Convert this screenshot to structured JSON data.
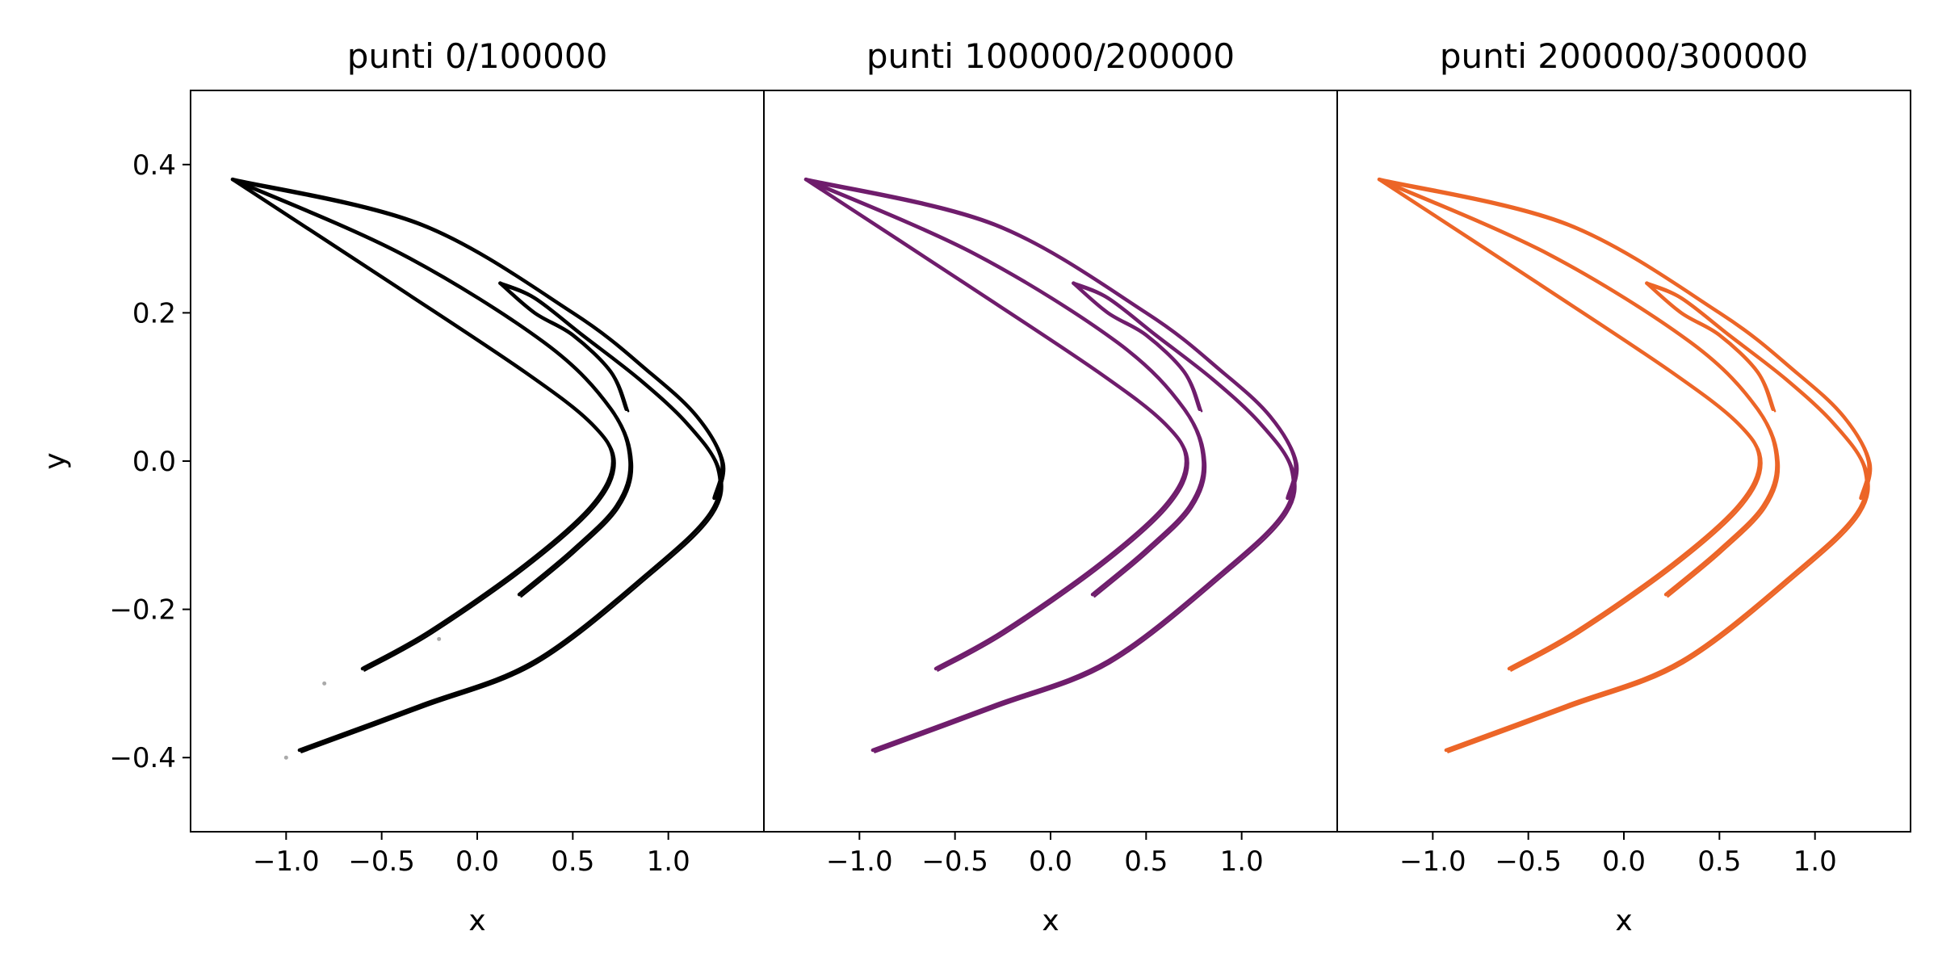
{
  "chart_data": [
    {
      "type": "scatter",
      "title": "punti 0/100000",
      "xlabel": "x",
      "ylabel": "y",
      "xlim": [
        -1.5,
        1.5
      ],
      "ylim": [
        -0.5,
        0.5
      ],
      "xticks": [
        -1.0,
        -0.5,
        0.0,
        0.5,
        1.0
      ],
      "xtick_labels": [
        "−1.0",
        "−0.5",
        "0.0",
        "0.5",
        "1.0"
      ],
      "yticks": [
        0.4,
        0.2,
        0.0,
        -0.2,
        -0.4
      ],
      "ytick_labels": [
        "0.4",
        "0.2",
        "0.0",
        "−0.2",
        "−0.4"
      ],
      "grid": false,
      "color": "#000000",
      "transient_points": [
        {
          "x": -1.0,
          "y": -0.4
        },
        {
          "x": -0.8,
          "y": -0.3
        },
        {
          "x": -0.2,
          "y": -0.24
        }
      ],
      "series": [
        {
          "points": [
            [
              -1.28,
              0.38
            ],
            [
              -0.45,
              0.24
            ],
            [
              0.25,
              0.12
            ],
            [
              0.6,
              0.05
            ],
            [
              0.71,
              0.0
            ],
            [
              0.6,
              -0.06
            ],
            [
              0.25,
              -0.14
            ],
            [
              -0.25,
              -0.23
            ],
            [
              -0.6,
              -0.28
            ]
          ]
        },
        {
          "points": [
            [
              -1.28,
              0.38
            ],
            [
              -0.4,
              0.28
            ],
            [
              0.35,
              0.16
            ],
            [
              0.7,
              0.07
            ],
            [
              0.8,
              0.0
            ],
            [
              0.73,
              -0.06
            ],
            [
              0.5,
              -0.12
            ],
            [
              0.22,
              -0.18
            ]
          ]
        },
        {
          "points": [
            [
              0.12,
              0.24
            ],
            [
              0.3,
              0.22
            ],
            [
              0.55,
              0.17
            ],
            [
              0.85,
              0.11
            ],
            [
              1.1,
              0.05
            ],
            [
              1.26,
              -0.01
            ],
            [
              1.22,
              -0.07
            ],
            [
              0.9,
              -0.15
            ],
            [
              0.3,
              -0.27
            ],
            [
              -0.3,
              -0.33
            ],
            [
              -0.93,
              -0.39
            ]
          ]
        },
        {
          "points": [
            [
              -1.28,
              0.38
            ],
            [
              -0.3,
              0.32
            ],
            [
              0.5,
              0.2
            ],
            [
              0.9,
              0.12
            ],
            [
              1.15,
              0.06
            ],
            [
              1.28,
              0.0
            ],
            [
              1.24,
              -0.05
            ]
          ]
        },
        {
          "points": [
            [
              0.12,
              0.24
            ],
            [
              0.3,
              0.2
            ],
            [
              0.5,
              0.17
            ],
            [
              0.7,
              0.12
            ],
            [
              0.78,
              0.07
            ]
          ]
        }
      ]
    },
    {
      "type": "scatter",
      "title": "punti 100000/200000",
      "xlabel": "x",
      "ylabel": "",
      "xlim": [
        -1.5,
        1.5
      ],
      "ylim": [
        -0.5,
        0.5
      ],
      "xticks": [
        -1.0,
        -0.5,
        0.0,
        0.5,
        1.0
      ],
      "xtick_labels": [
        "−1.0",
        "−0.5",
        "0.0",
        "0.5",
        "1.0"
      ],
      "yticks": [],
      "ytick_labels": [],
      "grid": false,
      "color": "#6f1d6c",
      "transient_points": [],
      "series": [
        {
          "points": [
            [
              -1.28,
              0.38
            ],
            [
              -0.45,
              0.24
            ],
            [
              0.25,
              0.12
            ],
            [
              0.6,
              0.05
            ],
            [
              0.71,
              0.0
            ],
            [
              0.6,
              -0.06
            ],
            [
              0.25,
              -0.14
            ],
            [
              -0.25,
              -0.23
            ],
            [
              -0.6,
              -0.28
            ]
          ]
        },
        {
          "points": [
            [
              -1.28,
              0.38
            ],
            [
              -0.4,
              0.28
            ],
            [
              0.35,
              0.16
            ],
            [
              0.7,
              0.07
            ],
            [
              0.8,
              0.0
            ],
            [
              0.73,
              -0.06
            ],
            [
              0.5,
              -0.12
            ],
            [
              0.22,
              -0.18
            ]
          ]
        },
        {
          "points": [
            [
              0.12,
              0.24
            ],
            [
              0.3,
              0.22
            ],
            [
              0.55,
              0.17
            ],
            [
              0.85,
              0.11
            ],
            [
              1.1,
              0.05
            ],
            [
              1.26,
              -0.01
            ],
            [
              1.22,
              -0.07
            ],
            [
              0.9,
              -0.15
            ],
            [
              0.3,
              -0.27
            ],
            [
              -0.3,
              -0.33
            ],
            [
              -0.93,
              -0.39
            ]
          ]
        },
        {
          "points": [
            [
              -1.28,
              0.38
            ],
            [
              -0.3,
              0.32
            ],
            [
              0.5,
              0.2
            ],
            [
              0.9,
              0.12
            ],
            [
              1.15,
              0.06
            ],
            [
              1.28,
              0.0
            ],
            [
              1.24,
              -0.05
            ]
          ]
        },
        {
          "points": [
            [
              0.12,
              0.24
            ],
            [
              0.3,
              0.2
            ],
            [
              0.5,
              0.17
            ],
            [
              0.7,
              0.12
            ],
            [
              0.78,
              0.07
            ]
          ]
        }
      ]
    },
    {
      "type": "scatter",
      "title": "punti 200000/300000",
      "xlabel": "x",
      "ylabel": "",
      "xlim": [
        -1.5,
        1.5
      ],
      "ylim": [
        -0.5,
        0.5
      ],
      "xticks": [
        -1.0,
        -0.5,
        0.0,
        0.5,
        1.0
      ],
      "xtick_labels": [
        "−1.0",
        "−0.5",
        "0.0",
        "0.5",
        "1.0"
      ],
      "yticks": [],
      "ytick_labels": [],
      "grid": false,
      "color": "#ec6527",
      "transient_points": [],
      "series": [
        {
          "points": [
            [
              -1.28,
              0.38
            ],
            [
              -0.45,
              0.24
            ],
            [
              0.25,
              0.12
            ],
            [
              0.6,
              0.05
            ],
            [
              0.71,
              0.0
            ],
            [
              0.6,
              -0.06
            ],
            [
              0.25,
              -0.14
            ],
            [
              -0.25,
              -0.23
            ],
            [
              -0.6,
              -0.28
            ]
          ]
        },
        {
          "points": [
            [
              -1.28,
              0.38
            ],
            [
              -0.4,
              0.28
            ],
            [
              0.35,
              0.16
            ],
            [
              0.7,
              0.07
            ],
            [
              0.8,
              0.0
            ],
            [
              0.73,
              -0.06
            ],
            [
              0.5,
              -0.12
            ],
            [
              0.22,
              -0.18
            ]
          ]
        },
        {
          "points": [
            [
              0.12,
              0.24
            ],
            [
              0.3,
              0.22
            ],
            [
              0.55,
              0.17
            ],
            [
              0.85,
              0.11
            ],
            [
              1.1,
              0.05
            ],
            [
              1.26,
              -0.01
            ],
            [
              1.22,
              -0.07
            ],
            [
              0.9,
              -0.15
            ],
            [
              0.3,
              -0.27
            ],
            [
              -0.3,
              -0.33
            ],
            [
              -0.93,
              -0.39
            ]
          ]
        },
        {
          "points": [
            [
              -1.28,
              0.38
            ],
            [
              -0.3,
              0.32
            ],
            [
              0.5,
              0.2
            ],
            [
              0.9,
              0.12
            ],
            [
              1.15,
              0.06
            ],
            [
              1.28,
              0.0
            ],
            [
              1.24,
              -0.05
            ]
          ]
        },
        {
          "points": [
            [
              0.12,
              0.24
            ],
            [
              0.3,
              0.2
            ],
            [
              0.5,
              0.17
            ],
            [
              0.7,
              0.12
            ],
            [
              0.78,
              0.07
            ]
          ]
        }
      ]
    }
  ]
}
